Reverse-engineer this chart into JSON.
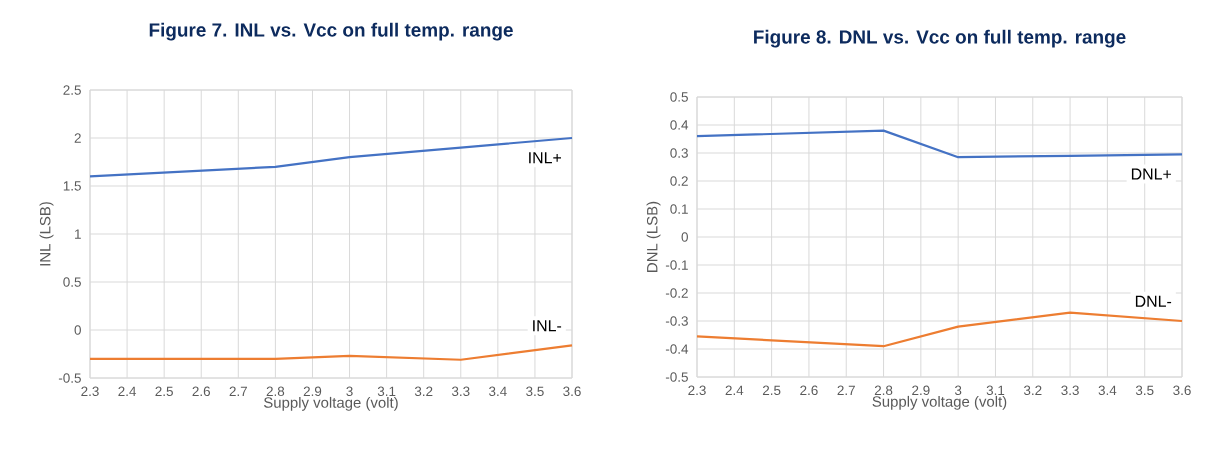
{
  "chart_data": [
    {
      "type": "line",
      "title": "Figure 7. INL vs. Vcc on full temp. range",
      "xlabel": "Supply voltage (volt)",
      "ylabel": "INL (LSB)",
      "x": [
        2.3,
        2.8,
        3,
        3.3,
        3.6
      ],
      "series": [
        {
          "name": "INL+",
          "color": "#4472c4",
          "values": [
            1.6,
            1.7,
            1.8,
            1.9,
            2.0
          ]
        },
        {
          "name": "INL-",
          "color": "#ed7d31",
          "values": [
            -0.3,
            -0.3,
            -0.27,
            -0.31,
            -0.16
          ]
        }
      ],
      "xlim": [
        2.3,
        3.6
      ],
      "ylim": [
        -0.5,
        2.5
      ],
      "xticks": [
        2.3,
        2.4,
        2.5,
        2.6,
        2.7,
        2.8,
        2.9,
        3,
        3.1,
        3.2,
        3.3,
        3.4,
        3.5,
        3.6
      ],
      "yticks": [
        -0.5,
        0,
        0.5,
        1,
        1.5,
        2,
        2.5
      ],
      "grid": true,
      "marker": "none"
    },
    {
      "type": "line",
      "title": "Figure 8. DNL vs. Vcc on full temp. range",
      "xlabel": "Supply voltage (volt)",
      "ylabel": "DNL (LSB)",
      "x": [
        2.3,
        2.8,
        3,
        3.3,
        3.6
      ],
      "series": [
        {
          "name": "DNL+",
          "color": "#4472c4",
          "values": [
            0.36,
            0.38,
            0.285,
            0.29,
            0.295
          ]
        },
        {
          "name": "DNL-",
          "color": "#ed7d31",
          "values": [
            -0.355,
            -0.39,
            -0.32,
            -0.27,
            -0.3
          ]
        }
      ],
      "xlim": [
        2.3,
        3.6
      ],
      "ylim": [
        -0.5,
        0.5
      ],
      "xticks": [
        2.3,
        2.4,
        2.5,
        2.6,
        2.7,
        2.8,
        2.9,
        3,
        3.1,
        3.2,
        3.3,
        3.4,
        3.5,
        3.6
      ],
      "yticks": [
        -0.5,
        -0.4,
        -0.3,
        -0.2,
        -0.1,
        0,
        0.1,
        0.2,
        0.3,
        0.4,
        0.5
      ],
      "grid": true,
      "marker": "none"
    }
  ]
}
